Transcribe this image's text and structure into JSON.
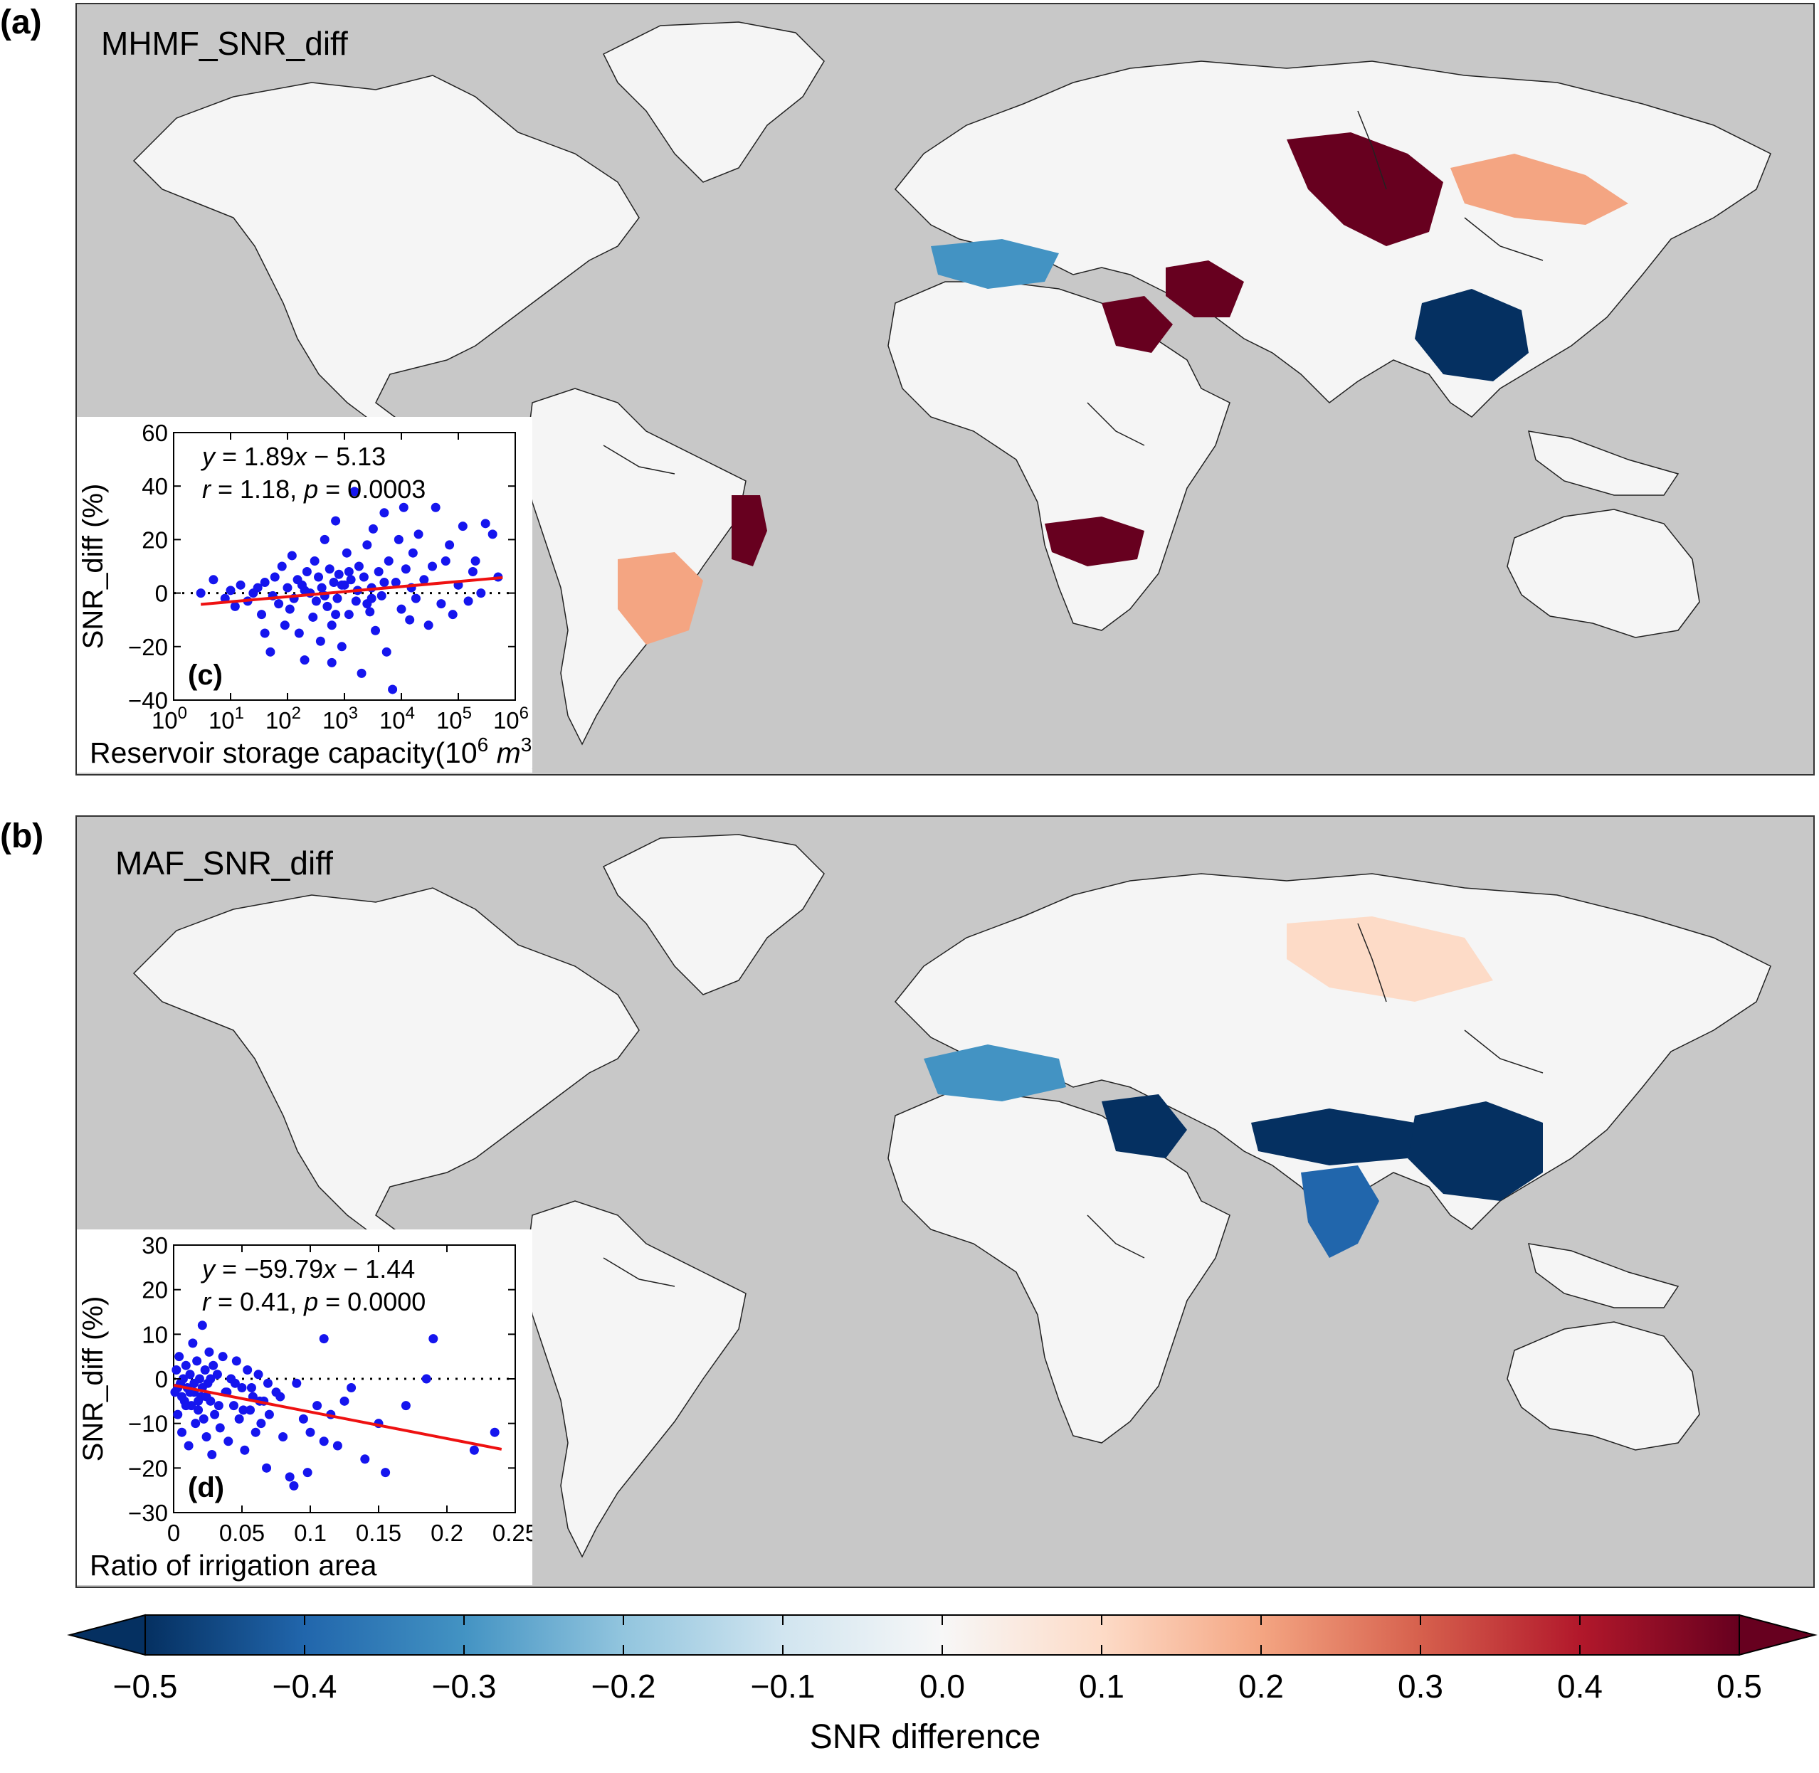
{
  "figure": {
    "panel_a_label": "(a)",
    "panel_b_label": "(b)",
    "colorbar": {
      "title": "SNR difference",
      "ticks": [
        "−0.5",
        "−0.4",
        "−0.3",
        "−0.2",
        "−0.1",
        "0.0",
        "0.1",
        "0.2",
        "0.3",
        "0.4",
        "0.5"
      ],
      "range": [
        -0.5,
        0.5
      ],
      "extend": "both",
      "colors": [
        "#053061",
        "#2166ac",
        "#4393c3",
        "#92c5de",
        "#d1e5f0",
        "#f7f7f7",
        "#fddbc7",
        "#f4a582",
        "#d6604d",
        "#b2182b",
        "#67001f"
      ]
    }
  },
  "map_a": {
    "title": "MHMF_SNR_diff",
    "ocean_color": "#c8c8c8",
    "land_color": "#f5f5f5",
    "hotspots": [
      {
        "region": "Central Siberia",
        "value": 0.5
      },
      {
        "region": "East Siberia",
        "value": 0.15
      },
      {
        "region": "Central Asia",
        "value": 0.5
      },
      {
        "region": "Middle East",
        "value": 0.45
      },
      {
        "region": "East China",
        "value": -0.5
      },
      {
        "region": "Southern Africa",
        "value": 0.5
      },
      {
        "region": "Eastern Brazil",
        "value": 0.5
      },
      {
        "region": "South America interior",
        "value": 0.2
      },
      {
        "region": "Europe",
        "value": -0.3
      }
    ]
  },
  "map_b": {
    "title": "MAF_SNR_diff",
    "ocean_color": "#c8c8c8",
    "land_color": "#f5f5f5",
    "hotspots": [
      {
        "region": "China",
        "value": -0.5
      },
      {
        "region": "Tibetan Plateau",
        "value": -0.45
      },
      {
        "region": "India",
        "value": -0.4
      },
      {
        "region": "Europe",
        "value": -0.35
      },
      {
        "region": "Middle East",
        "value": -0.45
      },
      {
        "region": "Siberia",
        "value": 0.08
      }
    ]
  },
  "chart_data": [
    {
      "type": "scatter",
      "panel": "(c)",
      "equation_y": "y",
      "equation_rest": " = 1.89",
      "equation_x": "x",
      "equation_tail": " − 5.13",
      "stats_r": "r",
      "stats_r_val": " = 1.18, ",
      "stats_p": "p",
      "stats_p_val": " = 0.0003",
      "xlabel": "Reservoir storage capacity(10",
      "xlabel_sup": "6",
      "xlabel_unit": " m",
      "xlabel_unit_sup": "3",
      "xlabel_close": ")",
      "ylabel": "SNR_diff (%)",
      "xscale": "log",
      "xlim": [
        1,
        1000000
      ],
      "ylim": [
        -40,
        60
      ],
      "yticks": [
        "60",
        "40",
        "20",
        "0",
        "−20",
        "−40"
      ],
      "xtick_base": "10",
      "xtick_exps": [
        "0",
        "1",
        "2",
        "3",
        "4",
        "5",
        "6"
      ],
      "fit": {
        "slope": 1.89,
        "intercept": -5.13,
        "x_range": [
          3,
          600000
        ]
      },
      "points": [
        [
          3,
          0
        ],
        [
          5,
          5
        ],
        [
          8,
          -2
        ],
        [
          10,
          1
        ],
        [
          12,
          -5
        ],
        [
          15,
          3
        ],
        [
          20,
          -3
        ],
        [
          25,
          0
        ],
        [
          30,
          2
        ],
        [
          35,
          -8
        ],
        [
          40,
          4
        ],
        [
          50,
          -22
        ],
        [
          55,
          -1
        ],
        [
          60,
          6
        ],
        [
          70,
          -4
        ],
        [
          80,
          10
        ],
        [
          90,
          -12
        ],
        [
          100,
          2
        ],
        [
          110,
          -6
        ],
        [
          120,
          14
        ],
        [
          130,
          -2
        ],
        [
          150,
          5
        ],
        [
          160,
          -15
        ],
        [
          180,
          3
        ],
        [
          200,
          -25
        ],
        [
          220,
          8
        ],
        [
          250,
          0
        ],
        [
          280,
          -9
        ],
        [
          300,
          12
        ],
        [
          320,
          -3
        ],
        [
          350,
          6
        ],
        [
          380,
          -18
        ],
        [
          400,
          2
        ],
        [
          450,
          20
        ],
        [
          500,
          -5
        ],
        [
          550,
          9
        ],
        [
          600,
          -12
        ],
        [
          650,
          4
        ],
        [
          700,
          27
        ],
        [
          750,
          -2
        ],
        [
          800,
          7
        ],
        [
          900,
          -20
        ],
        [
          1000,
          3
        ],
        [
          1100,
          15
        ],
        [
          1200,
          -8
        ],
        [
          1300,
          5
        ],
        [
          1500,
          38
        ],
        [
          1600,
          -3
        ],
        [
          1800,
          10
        ],
        [
          2000,
          -30
        ],
        [
          2200,
          6
        ],
        [
          2500,
          18
        ],
        [
          2800,
          -7
        ],
        [
          3000,
          2
        ],
        [
          3200,
          24
        ],
        [
          3500,
          -14
        ],
        [
          4000,
          8
        ],
        [
          4500,
          -1
        ],
        [
          5000,
          30
        ],
        [
          5500,
          -22
        ],
        [
          6000,
          12
        ],
        [
          7000,
          -36
        ],
        [
          8000,
          4
        ],
        [
          9000,
          20
        ],
        [
          10000,
          -6
        ],
        [
          11000,
          32
        ],
        [
          12000,
          9
        ],
        [
          14000,
          -10
        ],
        [
          16000,
          15
        ],
        [
          18000,
          -2
        ],
        [
          20000,
          22
        ],
        [
          25000,
          5
        ],
        [
          30000,
          -12
        ],
        [
          35000,
          10
        ],
        [
          40000,
          32
        ],
        [
          50000,
          -4
        ],
        [
          60000,
          12
        ],
        [
          70000,
          18
        ],
        [
          80000,
          -8
        ],
        [
          100000,
          3
        ],
        [
          120000,
          25
        ],
        [
          150000,
          -3
        ],
        [
          180000,
          8
        ],
        [
          200000,
          12
        ],
        [
          250000,
          0
        ],
        [
          300000,
          26
        ],
        [
          400000,
          22
        ],
        [
          500000,
          6
        ],
        [
          40,
          -15
        ],
        [
          600,
          -26
        ],
        [
          2500,
          -4
        ],
        [
          1700,
          1
        ],
        [
          900,
          3
        ],
        [
          450,
          -1
        ],
        [
          3000,
          -2
        ],
        [
          200,
          1
        ],
        [
          5000,
          4
        ],
        [
          15000,
          2
        ],
        [
          700,
          -8
        ],
        [
          1200,
          8
        ]
      ]
    },
    {
      "type": "scatter",
      "panel": "(d)",
      "equation_y": "y",
      "equation_rest": " = −59.79",
      "equation_x": "x",
      "equation_tail": " − 1.44",
      "stats_r": "r",
      "stats_r_val": " = 0.41, ",
      "stats_p": "p",
      "stats_p_val": " = 0.0000",
      "xlabel": "Ratio of irrigation area",
      "ylabel": "SNR_diff (%)",
      "xscale": "linear",
      "xlim": [
        0,
        0.25
      ],
      "ylim": [
        -30,
        30
      ],
      "xticks": [
        "0",
        "0.05",
        "0.1",
        "0.15",
        "0.2",
        "0.25"
      ],
      "yticks": [
        "30",
        "20",
        "10",
        "0",
        "−10",
        "−20",
        "−30"
      ],
      "fit": {
        "slope": -59.79,
        "intercept": -1.44,
        "x_range": [
          0,
          0.24
        ]
      },
      "points": [
        [
          0.001,
          -3
        ],
        [
          0.002,
          2
        ],
        [
          0.003,
          -8
        ],
        [
          0.004,
          5
        ],
        [
          0.005,
          -1
        ],
        [
          0.006,
          -12
        ],
        [
          0.007,
          0
        ],
        [
          0.008,
          -5
        ],
        [
          0.009,
          3
        ],
        [
          0.01,
          -2
        ],
        [
          0.011,
          -15
        ],
        [
          0.012,
          1
        ],
        [
          0.013,
          -6
        ],
        [
          0.014,
          8
        ],
        [
          0.015,
          -3
        ],
        [
          0.016,
          -10
        ],
        [
          0.017,
          4
        ],
        [
          0.018,
          -7
        ],
        [
          0.019,
          0
        ],
        [
          0.02,
          -4
        ],
        [
          0.021,
          12
        ],
        [
          0.022,
          -9
        ],
        [
          0.023,
          2
        ],
        [
          0.024,
          -13
        ],
        [
          0.025,
          -1
        ],
        [
          0.026,
          6
        ],
        [
          0.027,
          -5
        ],
        [
          0.028,
          -17
        ],
        [
          0.029,
          3
        ],
        [
          0.03,
          -8
        ],
        [
          0.032,
          1
        ],
        [
          0.034,
          -11
        ],
        [
          0.036,
          5
        ],
        [
          0.038,
          -3
        ],
        [
          0.04,
          -14
        ],
        [
          0.042,
          0
        ],
        [
          0.044,
          -6
        ],
        [
          0.046,
          4
        ],
        [
          0.048,
          -9
        ],
        [
          0.05,
          -2
        ],
        [
          0.052,
          -16
        ],
        [
          0.054,
          2
        ],
        [
          0.056,
          -7
        ],
        [
          0.058,
          -4
        ],
        [
          0.06,
          -12
        ],
        [
          0.062,
          1
        ],
        [
          0.064,
          -10
        ],
        [
          0.066,
          -5
        ],
        [
          0.068,
          -20
        ],
        [
          0.07,
          -8
        ],
        [
          0.075,
          -3
        ],
        [
          0.08,
          -13
        ],
        [
          0.085,
          -22
        ],
        [
          0.09,
          -1
        ],
        [
          0.095,
          -9
        ],
        [
          0.1,
          -12
        ],
        [
          0.105,
          -6
        ],
        [
          0.11,
          -14
        ],
        [
          0.115,
          -8
        ],
        [
          0.12,
          -15
        ],
        [
          0.13,
          -2
        ],
        [
          0.14,
          -18
        ],
        [
          0.15,
          -10
        ],
        [
          0.155,
          -21
        ],
        [
          0.17,
          -6
        ],
        [
          0.185,
          0
        ],
        [
          0.19,
          9
        ],
        [
          0.22,
          -16
        ],
        [
          0.235,
          -12
        ],
        [
          0.003,
          -2
        ],
        [
          0.006,
          -4
        ],
        [
          0.009,
          -6
        ],
        [
          0.012,
          -3
        ],
        [
          0.015,
          -1
        ],
        [
          0.018,
          -5
        ],
        [
          0.021,
          -2
        ],
        [
          0.024,
          -4
        ],
        [
          0.027,
          0
        ],
        [
          0.033,
          -6
        ],
        [
          0.039,
          -3
        ],
        [
          0.045,
          -1
        ],
        [
          0.051,
          -7
        ],
        [
          0.057,
          -2
        ],
        [
          0.063,
          -5
        ],
        [
          0.069,
          -1
        ],
        [
          0.078,
          -4
        ],
        [
          0.088,
          -24
        ],
        [
          0.098,
          -21
        ],
        [
          0.125,
          -5
        ],
        [
          0.11,
          9
        ]
      ]
    }
  ]
}
